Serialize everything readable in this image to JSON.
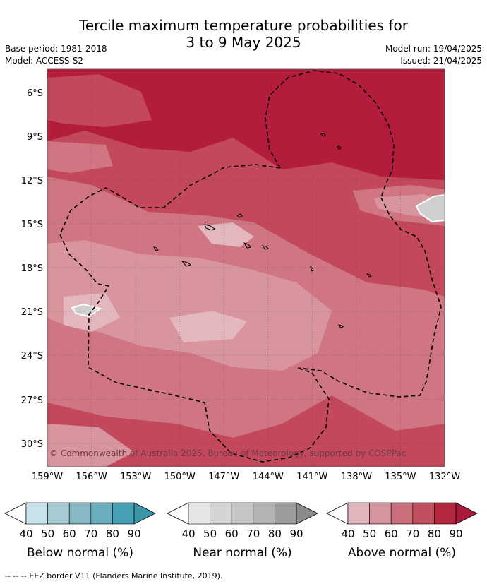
{
  "title": {
    "line1": "Tercile maximum temperature probabilities for",
    "line2": "3 to 9 May 2025"
  },
  "meta": {
    "base_period": "Base period: 1981-2018",
    "model": "Model: ACCESS-S2",
    "model_run": "Model run: 19/04/2025",
    "issued": "Issued: 21/04/2025"
  },
  "map": {
    "y_ticks": [
      "6°S",
      "9°S",
      "12°S",
      "15°S",
      "18°S",
      "21°S",
      "24°S",
      "27°S",
      "30°S"
    ],
    "x_ticks": [
      "159°W",
      "156°W",
      "153°W",
      "150°W",
      "147°W",
      "144°W",
      "141°W",
      "138°W",
      "135°W",
      "132°W"
    ],
    "copyright": "© Commonwealth of Australia 2025, Bureau of Meteorology, supported by COSPPac",
    "colors": {
      "above_80_90": "#b31d3b",
      "above_70_80": "#c3485c",
      "above_60_70": "#d07683",
      "above_50_60": "#d9959e",
      "above_40_50": "#e3b7bd",
      "near_70_80": "#cfcfcf",
      "eez_border": "#000000"
    }
  },
  "legend": {
    "ticks": [
      "40",
      "50",
      "60",
      "70",
      "80",
      "90"
    ],
    "groups": [
      {
        "label": "Below normal (%)",
        "colors": [
          "#c8e2e9",
          "#a7cbd3",
          "#88b8c4",
          "#6aaebe",
          "#469fb2",
          "#3d95a8"
        ]
      },
      {
        "label": "Near normal (%)",
        "colors": [
          "#e6e6e6",
          "#d4d4d4",
          "#c6c6c6",
          "#b3b3b3",
          "#9c9c9c",
          "#8a8a8a"
        ]
      },
      {
        "label": "Above normal (%)",
        "colors": [
          "#e2b6bc",
          "#d5959e",
          "#c86f7b",
          "#c0505f",
          "#b3273f",
          "#a81c3a"
        ]
      }
    ]
  },
  "footer": "--  --  -- EEZ border V11 (Flanders Marine Institute, 2019)."
}
